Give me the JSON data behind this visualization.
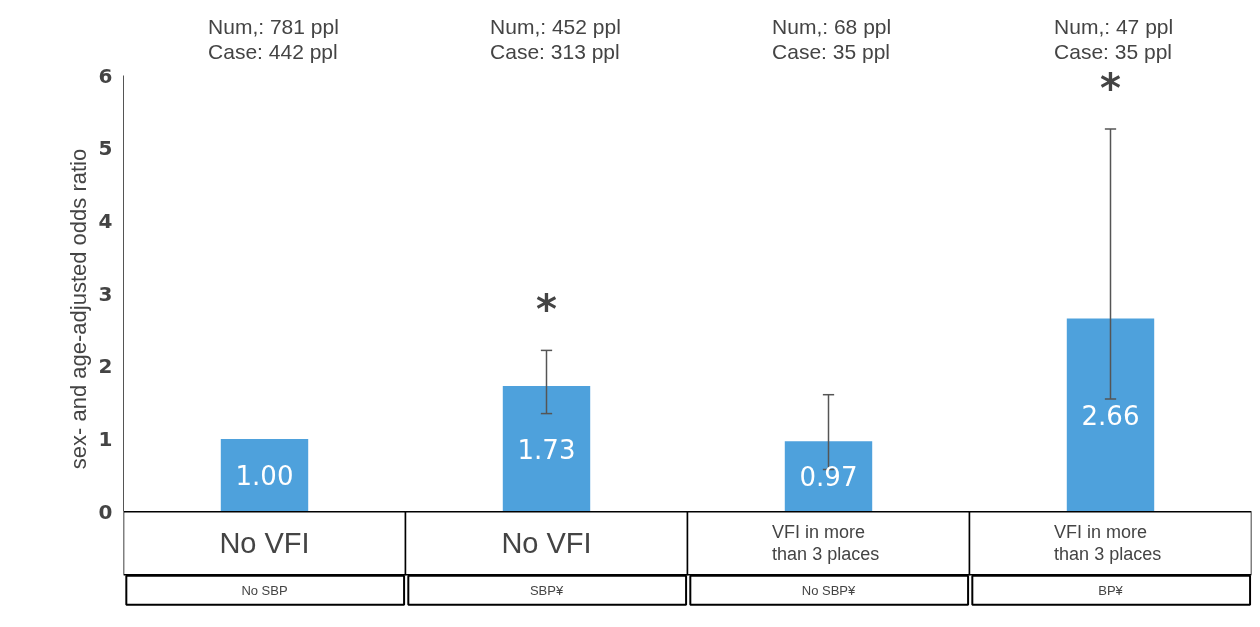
{
  "chart_data": {
    "type": "bar",
    "ylabel": "sex- and age-adjusted odds ratio",
    "categories": [
      "No SBP",
      "SBP¥",
      "No SBP¥",
      "BP¥"
    ],
    "values": [
      1.0,
      1.73,
      0.97,
      2.66
    ],
    "color": "#4ea1dc",
    "value_labels": [
      "1.00",
      "1.73",
      "0.97",
      "2.66"
    ],
    "errors": [
      null,
      [
        1.35,
        2.22
      ],
      [
        0.58,
        1.61
      ],
      [
        1.55,
        5.27
      ]
    ],
    "ylim": [
      0,
      6
    ],
    "yticks": [
      0,
      1,
      2,
      3,
      4,
      5,
      6
    ],
    "grid": false,
    "annotations": [
      "Num,: 781 ppl\nCase: 442 ppl",
      "Num,: 452 ppl\nCase: 313 ppl",
      "Num,: 68 ppl\nCase: 35 ppl",
      "Num,: 47 ppl\nCase: 35 ppl",
      "No VFI",
      "No VFI",
      "VFI in more\nthan 3 places",
      "VFI in more\nthan 3 places",
      "*",
      "*"
    ]
  }
}
